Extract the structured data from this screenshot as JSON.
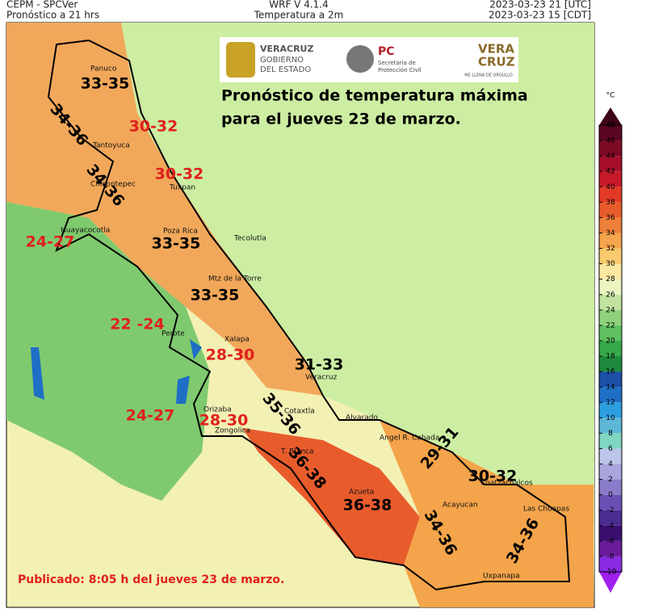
{
  "header": {
    "left": [
      "CEPM - SPCVer",
      "Pronóstico a 21 hrs"
    ],
    "center": [
      "WRF V 4.1.4",
      "Temperatura a 2m"
    ],
    "right": [
      "2023-03-23 21 [UTC]",
      "2023-03-23 15 [CDT]"
    ]
  },
  "logos": {
    "veracruz": [
      "VERACRUZ",
      "GOBIERNO",
      "DEL ESTADO"
    ],
    "pc": [
      "PC",
      "Secretaría de",
      "Protección Civil"
    ],
    "brand": [
      "VERA",
      "CRUZ",
      "ME LLENA DE ORGULLO"
    ]
  },
  "title": [
    "Pronóstico de temperatura máxima",
    "para el jueves 23 de marzo."
  ],
  "places": [
    "Panuco",
    "Tantoyuca",
    "Chicontepec",
    "Tuxpan",
    "Huayacocotla",
    "Poza Rica",
    "Tecolutla",
    "Mtz de la Torre",
    "Perote",
    "Xalapa",
    "Veracruz",
    "Cotaxtla",
    "Alvarado",
    "Angel R. Cabada",
    "Orizaba",
    "Zongolica",
    "T. Blanca",
    "Coatzacoalcos",
    "Azueta",
    "Acayucan",
    "Las Choapas",
    "Uxpanapa"
  ],
  "temperature_labels": [
    "33-35",
    "34-36",
    "30-32",
    "30-32",
    "34-36",
    "24-27",
    "33-35",
    "33-35",
    "22 -24",
    "28-30",
    "31-33",
    "35-36",
    "24-27",
    "28-30",
    "36-38",
    "29-31",
    "30-32",
    "36-38",
    "34-36",
    "34-36"
  ],
  "colorbar": {
    "unit": "°C",
    "ticks": [
      -10,
      -8,
      -6,
      -4,
      -2,
      0,
      2,
      4,
      6,
      8,
      10,
      12,
      14,
      16,
      18,
      20,
      22,
      24,
      26,
      28,
      30,
      32,
      34,
      36,
      38,
      40,
      42,
      44,
      46,
      48
    ],
    "colors": [
      "#8a2be2",
      "#6a1b9a",
      "#3b0f70",
      "#4b2c91",
      "#6a4fb5",
      "#8a7cc9",
      "#a9a6dd",
      "#bcc6ea",
      "#7fd6c0",
      "#5cb8d6",
      "#2c9fe0",
      "#1f6fc6",
      "#1c4fa8",
      "#1e8a3e",
      "#36a94a",
      "#5ec060",
      "#8fd17c",
      "#c2e39f",
      "#eaf5c2",
      "#fbe7a0",
      "#f9c96e",
      "#f4a44a",
      "#ee7f3a",
      "#e85c2c",
      "#e23a26",
      "#c8192a",
      "#a50f2a",
      "#7d0a25",
      "#5a0620"
    ],
    "under_color": "#a020f0",
    "over_color": "#3e0418"
  },
  "footer": "Publicado: 8:05 h del jueves 23 de marzo."
}
